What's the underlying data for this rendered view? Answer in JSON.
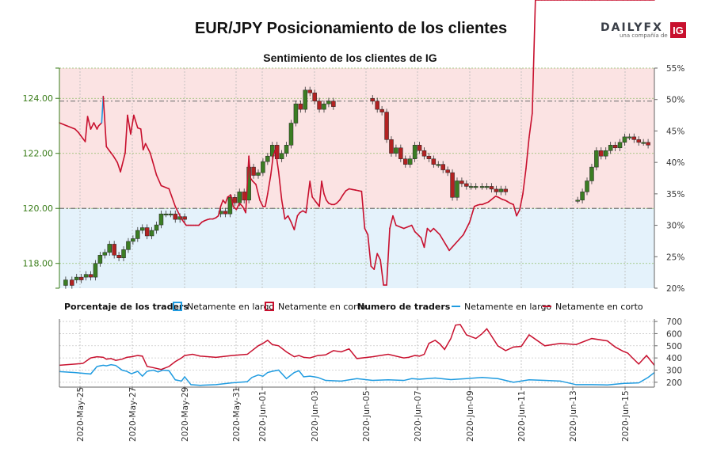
{
  "header": {
    "title": "EUR/JPY Posicionamiento de los clientes",
    "logo_text": "DAILYFX",
    "logo_tagline": "una compañía de",
    "logo_badge": "IG"
  },
  "colors": {
    "long_blue": "#1f9be0",
    "short_red": "#c8102e",
    "bull_green": "#3b7d23",
    "bear_red": "#b22222",
    "short_zone_fill": "#fbe3e3",
    "long_zone_fill": "#e4f2fb",
    "axis_green": "#3a7d1a"
  },
  "chart_data": [
    {
      "type": "line",
      "title": "Sentimiento de los clientes de IG",
      "x_dates": [
        "2020-May-25",
        "2020-May-27",
        "2020-May-29",
        "2020-May-31",
        "2020-Jun-01",
        "2020-Jun-03",
        "2020-Jun-05",
        "2020-Jun-07",
        "2020-Jun-09",
        "2020-Jun-11",
        "2020-Jun-13",
        "2020-Jun-15"
      ],
      "y_left_ticks": [
        "118.00",
        "120.00",
        "122.00",
        "124.00"
      ],
      "y_left_range": [
        117.1,
        125.1
      ],
      "y_right_ticks": [
        "20%",
        "25%",
        "30%",
        "35%",
        "40%",
        "45%",
        "50%",
        "55%"
      ],
      "y_right_range": [
        20,
        55
      ],
      "reference_price_lines": [
        123.9,
        120.0
      ],
      "grid": true,
      "sentiment_series": {
        "name": "Porcentaje de los traders",
        "x_day": [
          0,
          0.5,
          1,
          1.2,
          1.35,
          1.5,
          1.65,
          1.8,
          2,
          2.2,
          2.4,
          2.5,
          2.7,
          2.8,
          3,
          3.15,
          3.3,
          3.45,
          3.7,
          3.9,
          4,
          4.2,
          4.35,
          4.55,
          4.75,
          5,
          5.2,
          5.35,
          5.5,
          5.8,
          6.2,
          6.5,
          7,
          7.4,
          7.8,
          7.95,
          8.1,
          8.25,
          8.4,
          8.55,
          8.7,
          8.9,
          9.1,
          9.25,
          9.45,
          9.6,
          9.8,
          10,
          10.15,
          10.3,
          10.45,
          10.6,
          10.75,
          10.95,
          11.1,
          11.3,
          11.5,
          11.7,
          11.9,
          12.1,
          12.2,
          12.35,
          12.55,
          12.8,
          13,
          13.15,
          13.3,
          13.5,
          13.65,
          13.8,
          14,
          14.2,
          14.4,
          14.6,
          14.8,
          15,
          15.2,
          15.35,
          15.55,
          15.75,
          16,
          16.15,
          16.3,
          16.45,
          16.6,
          16.75,
          16.9,
          17.05,
          17.2,
          17.4,
          17.55,
          17.7,
          17.9,
          18.1,
          18.3,
          18.5,
          18.7,
          18.9,
          19.1,
          19.3,
          19.5,
          19.7,
          19.9,
          20.1,
          20.3,
          20.5,
          20.7,
          20.9,
          21.1,
          21.3,
          21.5,
          22,
          22.5,
          22.7,
          22.9,
          23.1,
          23.3,
          23.5,
          23.7,
          23.9,
          24.3,
          24.9,
          25.8,
          26.2,
          26.5,
          26.7,
          26.85,
          27,
          27.2,
          27.4,
          27.55,
          27.7,
          27.85,
          28,
          28.15,
          28.3,
          28.45,
          28.6,
          28.8,
          29,
          29.2,
          29.4,
          29.6,
          29.8,
          30,
          30.2,
          30.4,
          30.6,
          30.8,
          31,
          31.2,
          31.4,
          31.6,
          31.8,
          32,
          32.2,
          32.4,
          32.6,
          32.8,
          33,
          33.2,
          33.4,
          33.6,
          33.8,
          34,
          34.2,
          34.5,
          35,
          35.3,
          35.6,
          36,
          36.3,
          36.5,
          36.7,
          36.9,
          37.1,
          37.4,
          37.7,
          38
        ],
        "long_pct": [
          46.3,
          45.8,
          45.3,
          44.8,
          44.3,
          43.8,
          43.3,
          47.3,
          45.3,
          46.3,
          45.3,
          45.8,
          46.3,
          50.5,
          42.5,
          42.0,
          41.5,
          41.0,
          40.0,
          38.5,
          39.5,
          41.5,
          47.5,
          44.5,
          47.5,
          45.5,
          45.3,
          42.0,
          43.0,
          41.5,
          38.0,
          36.3,
          35.8,
          33.0,
          31.0,
          30.5,
          30.0,
          30.0,
          30.0,
          30.0,
          30.0,
          30.0,
          30.5,
          30.7,
          30.9,
          31.0,
          31.0,
          31.2,
          31.5,
          33.0,
          34.0,
          33.5,
          34.5,
          34.8,
          33.0,
          32.5,
          33.5,
          33.0,
          32.0,
          41.0,
          37.5,
          37.0,
          36.5,
          34.0,
          33.0,
          33.0,
          35.0,
          38.0,
          41.0,
          42.0,
          38.5,
          34.0,
          31.0,
          31.5,
          30.5,
          29.3,
          31.5,
          32.0,
          32.3,
          32.0,
          37.0,
          34.5,
          34.0,
          33.5,
          33.0,
          37.0,
          35.0,
          34.0,
          33.5,
          33.3,
          33.3,
          33.5,
          34.0,
          34.8,
          35.5,
          35.8,
          35.7,
          35.6,
          35.5,
          35.4,
          29.5,
          28.5,
          23.5,
          23.0,
          25.5,
          24.5,
          20.5,
          20.5,
          29.5,
          31.5,
          30.0,
          29.5,
          30.0,
          29.0,
          28.5,
          28.0,
          26.5,
          29.5,
          29.0,
          29.5,
          28.5,
          26.0,
          28.5,
          30.5,
          33.0,
          33.2,
          33.3,
          33.3,
          33.5,
          33.7,
          34.0,
          34.3,
          34.6,
          34.5,
          34.3,
          34.1,
          34.0,
          33.8,
          33.5,
          33.3,
          31.5,
          32.5,
          35.0,
          39.0,
          44.0,
          47.8
        ],
        "anomaly_note": "",
        "colors_above_50": "#1f9be0"
      },
      "price_candles_ohlc": {
        "x_day": [
          0.4,
          0.8,
          1.1,
          1.4,
          1.7,
          2.0,
          2.3,
          2.6,
          2.9,
          3.2,
          3.5,
          3.8,
          4.1,
          4.4,
          4.7,
          5.0,
          5.3,
          5.6,
          5.9,
          6.2,
          6.5,
          6.8,
          7.1,
          7.4,
          7.7,
          8.0,
          10.3,
          10.6,
          10.9,
          11.2,
          11.5,
          11.8,
          12.1,
          12.4,
          12.7,
          13.0,
          13.3,
          13.6,
          13.9,
          14.2,
          14.5,
          14.8,
          15.1,
          15.4,
          15.7,
          16.0,
          16.3,
          16.6,
          16.9,
          17.2,
          17.5,
          20.0,
          20.3,
          20.6,
          20.9,
          21.2,
          21.5,
          21.8,
          22.1,
          22.4,
          22.7,
          23.0,
          23.3,
          23.6,
          23.9,
          24.2,
          24.5,
          24.8,
          25.1,
          25.4,
          25.7,
          26.0,
          26.3,
          26.6,
          27.0,
          27.3,
          27.6,
          27.9,
          28.2,
          28.5,
          33.1,
          33.4,
          33.7,
          34.0,
          34.3,
          34.6,
          34.9,
          35.2,
          35.5,
          35.8,
          36.1,
          36.4,
          36.7,
          37.0,
          37.3,
          37.6
        ],
        "open": [
          117.2,
          117.4,
          117.4,
          117.5,
          117.5,
          117.6,
          117.5,
          118.0,
          118.3,
          118.4,
          118.7,
          118.3,
          118.2,
          118.5,
          118.8,
          118.9,
          119.2,
          119.3,
          119.0,
          119.2,
          119.4,
          119.8,
          119.8,
          119.8,
          119.6,
          119.7,
          119.8,
          119.9,
          119.8,
          120.4,
          120.2,
          120.6,
          120.3,
          121.5,
          121.2,
          121.3,
          121.7,
          121.9,
          122.3,
          121.8,
          122.0,
          122.3,
          123.1,
          123.8,
          123.6,
          124.3,
          124.2,
          123.9,
          123.6,
          123.8,
          123.9,
          124.0,
          123.9,
          123.6,
          123.5,
          122.5,
          122.0,
          122.2,
          121.8,
          121.6,
          121.8,
          122.3,
          122.1,
          121.9,
          121.8,
          121.6,
          121.6,
          121.4,
          121.3,
          120.4,
          121.0,
          120.9,
          120.8,
          120.8,
          120.8,
          120.8,
          120.8,
          120.7,
          120.6,
          120.7,
          120.3,
          120.3,
          120.6,
          121.0,
          121.5,
          122.1,
          121.9,
          122.1,
          122.3,
          122.2,
          122.4,
          122.6,
          122.6,
          122.5,
          122.4,
          122.4
        ],
        "close": [
          117.4,
          117.2,
          117.5,
          117.4,
          117.6,
          117.5,
          118.0,
          118.3,
          118.4,
          118.7,
          118.3,
          118.2,
          118.5,
          118.8,
          118.9,
          119.2,
          119.3,
          119.0,
          119.2,
          119.4,
          119.8,
          119.8,
          119.8,
          119.6,
          119.7,
          119.6,
          119.9,
          119.8,
          120.4,
          120.2,
          120.6,
          120.3,
          121.5,
          121.2,
          121.3,
          121.7,
          121.9,
          122.3,
          121.8,
          122.0,
          122.3,
          123.1,
          123.8,
          123.6,
          124.3,
          124.2,
          123.9,
          123.6,
          123.8,
          123.9,
          123.7,
          123.9,
          123.6,
          123.5,
          122.5,
          122.0,
          122.2,
          121.8,
          121.6,
          121.8,
          122.3,
          122.1,
          121.9,
          121.8,
          121.6,
          121.6,
          121.4,
          121.3,
          120.4,
          121.0,
          120.9,
          120.8,
          120.8,
          120.8,
          120.8,
          120.8,
          120.7,
          120.6,
          120.7,
          120.6,
          120.3,
          120.6,
          121.0,
          121.5,
          122.1,
          121.9,
          122.1,
          122.3,
          122.2,
          122.4,
          122.6,
          122.6,
          122.5,
          122.4,
          122.4,
          122.3
        ]
      }
    },
    {
      "type": "line",
      "title": "Numero de traders",
      "y_ticks": [
        "200",
        "300",
        "400",
        "500",
        "600",
        "700"
      ],
      "y_range": [
        160,
        720
      ],
      "series": [
        {
          "name": "Netamente en largo",
          "color": "#1f9be0",
          "x_day": [
            0,
            1,
            2,
            2.4,
            2.8,
            3,
            3.3,
            3.6,
            4,
            4.3,
            4.6,
            5,
            5.3,
            5.6,
            6,
            6.3,
            6.6,
            7,
            7.4,
            7.8,
            8,
            8.4,
            9,
            10,
            11,
            12,
            12.3,
            12.7,
            13,
            13.3,
            13.6,
            14,
            14.5,
            15,
            15.3,
            15.6,
            16,
            16.5,
            17,
            18,
            19,
            20,
            21,
            22,
            22.5,
            23,
            24,
            25,
            26,
            27,
            28,
            29,
            30,
            31,
            32,
            33,
            34,
            35,
            36,
            37,
            37.6,
            38
          ],
          "values": [
            288,
            280,
            268,
            330,
            340,
            335,
            345,
            338,
            300,
            290,
            270,
            290,
            250,
            290,
            300,
            285,
            300,
            295,
            220,
            210,
            245,
            180,
            175,
            180,
            195,
            205,
            240,
            260,
            250,
            280,
            290,
            300,
            230,
            280,
            295,
            245,
            250,
            240,
            215,
            210,
            230,
            215,
            220,
            215,
            230,
            225,
            235,
            222,
            230,
            240,
            230,
            200,
            220,
            215,
            210,
            180,
            180,
            178,
            190,
            195,
            240,
            280
          ]
        },
        {
          "name": "Netamente en corto",
          "color": "#c8102e",
          "x_day": [
            0,
            1,
            1.5,
            2,
            2.4,
            2.8,
            3,
            3.3,
            3.6,
            4,
            4.3,
            4.6,
            5,
            5.3,
            5.6,
            6,
            6.5,
            7,
            7.4,
            7.8,
            8,
            8.5,
            9,
            10,
            11,
            12,
            12.3,
            12.7,
            13,
            13.3,
            13.6,
            14,
            14.5,
            15,
            15.3,
            15.6,
            16,
            16.5,
            17,
            17.5,
            18,
            18.5,
            19,
            20,
            21,
            22,
            22.3,
            22.7,
            23,
            23.3,
            23.6,
            24,
            24.3,
            24.6,
            25,
            25.3,
            25.6,
            26,
            26.3,
            26.6,
            27,
            27.3,
            27.6,
            28,
            28.5,
            29,
            29.5,
            30,
            31,
            32,
            33,
            34,
            35,
            35.5,
            36,
            36.3,
            36.6,
            37,
            37.5,
            38
          ],
          "values": [
            340,
            350,
            355,
            400,
            410,
            405,
            390,
            395,
            380,
            390,
            405,
            410,
            420,
            415,
            330,
            320,
            305,
            330,
            370,
            400,
            420,
            430,
            415,
            405,
            420,
            430,
            460,
            500,
            520,
            545,
            510,
            500,
            450,
            410,
            420,
            405,
            400,
            420,
            425,
            460,
            450,
            475,
            395,
            410,
            430,
            400,
            405,
            420,
            415,
            430,
            520,
            545,
            515,
            470,
            560,
            670,
            675,
            590,
            575,
            560,
            600,
            640,
            580,
            500,
            460,
            490,
            495,
            590,
            500,
            520,
            510,
            560,
            540,
            490,
            455,
            440,
            400,
            350,
            420,
            340
          ]
        }
      ]
    }
  ],
  "legend": {
    "percent_label": "Porcentaje de los traders",
    "long_label": "Netamente en largo",
    "short_label": "Netamente en corto",
    "count_label": "Numero de traders",
    "long_label2": "Netamente en largo",
    "short_label2": "Netamente en corto"
  }
}
